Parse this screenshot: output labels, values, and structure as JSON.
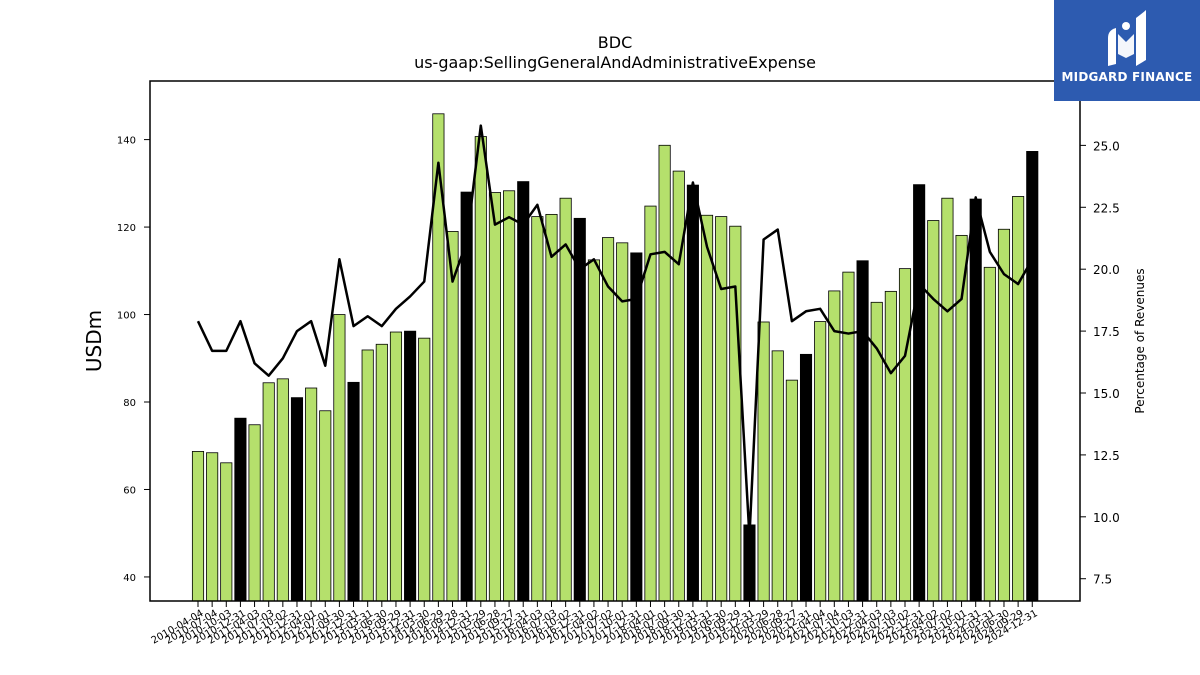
{
  "chart_data": {
    "type": "bar",
    "title": "BDC",
    "subtitle": "us-gaap:SellingGeneralAndAdministrativeExpense",
    "ylabel": "USDm",
    "y2label": "Percentage of Revenues",
    "ylim": [
      34.5,
      153.4
    ],
    "y2lim": [
      6.6,
      27.6
    ],
    "yticks": [
      40,
      60,
      80,
      100,
      120,
      140
    ],
    "y2ticks": [
      7.5,
      10.0,
      12.5,
      15.0,
      17.5,
      20.0,
      22.5,
      25.0
    ],
    "categories": [
      "2010-04-04",
      "2010-07-04",
      "2010-10-03",
      "2010-12-31",
      "2011-04-03",
      "2011-07-03",
      "2011-10-02",
      "2011-12-31",
      "2012-04-01",
      "2012-07-01",
      "2012-09-30",
      "2012-12-31",
      "2013-03-31",
      "2013-06-30",
      "2013-09-29",
      "2013-12-31",
      "2014-03-30",
      "2014-06-29",
      "2014-09-28",
      "2014-12-31",
      "2015-03-29",
      "2015-06-28",
      "2015-09-27",
      "2015-12-31",
      "2016-04-03",
      "2016-07-03",
      "2016-10-02",
      "2016-12-31",
      "2017-04-02",
      "2017-07-02",
      "2017-10-01",
      "2017-12-31",
      "2018-04-01",
      "2018-07-01",
      "2018-09-30",
      "2018-12-31",
      "2019-03-31",
      "2019-06-30",
      "2019-09-29",
      "2019-12-31",
      "2020-03-29",
      "2020-06-28",
      "2020-09-27",
      "2020-12-31",
      "2021-04-04",
      "2021-07-04",
      "2021-10-03",
      "2021-12-31",
      "2022-04-03",
      "2022-07-03",
      "2022-10-02",
      "2022-12-31",
      "2023-04-02",
      "2023-07-02",
      "2023-10-01",
      "2023-12-31",
      "2024-03-31",
      "2024-06-30",
      "2024-09-29",
      "2024-12-31"
    ],
    "values": [
      68.7,
      68.4,
      66.1,
      76.3,
      74.8,
      84.4,
      85.3,
      81.0,
      83.2,
      78.0,
      100.0,
      84.5,
      91.9,
      93.2,
      96.0,
      96.2,
      94.6,
      145.9,
      119.0,
      128.0,
      140.7,
      127.9,
      128.3,
      130.4,
      122.4,
      122.9,
      126.6,
      122.0,
      112.5,
      117.6,
      116.4,
      114.1,
      124.8,
      138.7,
      132.8,
      129.6,
      122.7,
      122.4,
      120.2,
      51.9,
      98.3,
      91.7,
      85.0,
      90.9,
      98.4,
      105.4,
      109.7,
      112.3,
      102.8,
      105.3,
      110.5,
      129.7,
      121.5,
      126.6,
      118.1,
      126.4,
      110.8,
      119.5,
      127.0,
      137.3
    ],
    "bar_colors": [
      "#b5e06c",
      "#b5e06c",
      "#b5e06c",
      "#000000",
      "#b5e06c",
      "#b5e06c",
      "#b5e06c",
      "#000000",
      "#b5e06c",
      "#b5e06c",
      "#b5e06c",
      "#000000",
      "#b5e06c",
      "#b5e06c",
      "#b5e06c",
      "#000000",
      "#b5e06c",
      "#b5e06c",
      "#b5e06c",
      "#000000",
      "#b5e06c",
      "#b5e06c",
      "#b5e06c",
      "#000000",
      "#b5e06c",
      "#b5e06c",
      "#b5e06c",
      "#000000",
      "#b5e06c",
      "#b5e06c",
      "#b5e06c",
      "#000000",
      "#b5e06c",
      "#b5e06c",
      "#b5e06c",
      "#000000",
      "#b5e06c",
      "#b5e06c",
      "#b5e06c",
      "#000000",
      "#b5e06c",
      "#b5e06c",
      "#b5e06c",
      "#000000",
      "#b5e06c",
      "#b5e06c",
      "#b5e06c",
      "#000000",
      "#b5e06c",
      "#b5e06c",
      "#b5e06c",
      "#000000",
      "#b5e06c",
      "#b5e06c",
      "#b5e06c",
      "#000000",
      "#b5e06c",
      "#b5e06c",
      "#b5e06c",
      "#000000"
    ],
    "line_values": [
      17.9,
      16.7,
      16.7,
      17.9,
      16.2,
      15.7,
      16.4,
      17.5,
      17.9,
      16.1,
      20.4,
      17.7,
      18.1,
      17.7,
      18.4,
      18.9,
      19.5,
      24.3,
      19.5,
      21.1,
      25.8,
      21.8,
      22.1,
      21.8,
      22.6,
      20.5,
      21.0,
      20.0,
      20.4,
      19.3,
      18.7,
      18.8,
      20.6,
      20.7,
      20.2,
      23.5,
      20.9,
      19.2,
      19.3,
      9.2,
      21.2,
      21.6,
      17.9,
      18.3,
      18.4,
      17.5,
      17.4,
      17.5,
      16.8,
      15.8,
      16.5,
      19.4,
      18.8,
      18.3,
      18.8,
      22.9,
      20.7,
      19.8,
      19.4,
      20.4
    ],
    "colors": {
      "bar_regular": "#b5e06c",
      "bar_year_end": "#000000",
      "line": "#000000"
    },
    "grid": false
  },
  "logo": {
    "text": "MIDGARD FINANCE",
    "background": "#2d5bb0"
  }
}
